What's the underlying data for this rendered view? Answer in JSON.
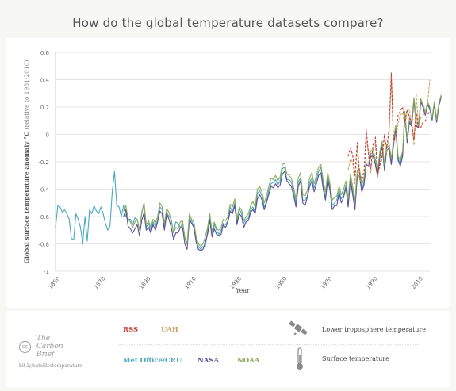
{
  "title": "How do the global temperature datasets compare?",
  "brand": {
    "cc": "cc",
    "line1": "The",
    "line2": "Carbon",
    "line3": "Brief",
    "url": "bit.ly/satellitetemperature"
  },
  "legend": {
    "rss": "RSS",
    "uah": "UAH",
    "met": "Met Office/CRU",
    "nasa": "NASA",
    "noaa": "NOAA",
    "lower_troposphere": "Lower troposphere temperature",
    "surface": "Surface temperature",
    "satellite_icon": "satellite-icon",
    "thermometer_icon": "thermometer-icon"
  },
  "colors": {
    "rss": "#c0392b",
    "uah": "#c9a46a",
    "met": "#4aa8c0",
    "nasa": "#5b4f9a",
    "noaa": "#8aab5a",
    "grid": "#e4e4e4"
  },
  "chart_data": {
    "type": "line",
    "title": "How do the global temperature datasets compare?",
    "xlabel": "Year",
    "ylabel": "Global surface temperature anomaly °C",
    "ylabel_note": "(relative to 1981-2010)",
    "xlim": [
      1850,
      2015
    ],
    "ylim": [
      -1,
      0.6
    ],
    "xticks": [
      1850,
      1870,
      1890,
      1910,
      1930,
      1950,
      1970,
      1990,
      2010
    ],
    "yticks": [
      0.6,
      0.4,
      0.2,
      0,
      -0.2,
      -0.4,
      -0.6,
      -0.8,
      -1
    ],
    "ytick_labels": [
      "0.6",
      "0.4",
      "0.2",
      "0",
      "-0.2",
      "-0.4",
      "-0.6",
      "-0.8",
      "-1"
    ],
    "grid": true,
    "series": [
      {
        "name": "Met Office/CRU",
        "style": "solid",
        "x_start": 1850,
        "values": [
          -0.68,
          -0.52,
          -0.53,
          -0.57,
          -0.55,
          -0.58,
          -0.62,
          -0.76,
          -0.77,
          -0.58,
          -0.62,
          -0.68,
          -0.8,
          -0.6,
          -0.78,
          -0.55,
          -0.58,
          -0.52,
          -0.56,
          -0.58,
          -0.53,
          -0.58,
          -0.65,
          -0.7,
          -0.67,
          -0.42,
          -0.27,
          -0.52,
          -0.53,
          -0.6,
          -0.52,
          -0.6,
          -0.62,
          -0.62,
          -0.66,
          -0.61,
          -0.62,
          -0.7,
          -0.57,
          -0.5,
          -0.68,
          -0.65,
          -0.71,
          -0.64,
          -0.67,
          -0.63,
          -0.53,
          -0.55,
          -0.68,
          -0.57,
          -0.6,
          -0.62,
          -0.72,
          -0.64,
          -0.65,
          -0.68,
          -0.65,
          -0.75,
          -0.8,
          -0.61,
          -0.63,
          -0.68,
          -0.78,
          -0.82,
          -0.84,
          -0.82,
          -0.82,
          -0.71,
          -0.6,
          -0.74,
          -0.66,
          -0.7,
          -0.73,
          -0.7,
          -0.65,
          -0.66,
          -0.63,
          -0.53,
          -0.57,
          -0.5,
          -0.64,
          -0.54,
          -0.58,
          -0.65,
          -0.62,
          -0.61,
          -0.55,
          -0.53,
          -0.57,
          -0.43,
          -0.41,
          -0.45,
          -0.53,
          -0.49,
          -0.41,
          -0.36,
          -0.35,
          -0.33,
          -0.37,
          -0.34,
          -0.25,
          -0.24,
          -0.33,
          -0.33,
          -0.35,
          -0.42,
          -0.5,
          -0.35,
          -0.32,
          -0.48,
          -0.48,
          -0.45,
          -0.35,
          -0.32,
          -0.39,
          -0.33,
          -0.27,
          -0.24,
          -0.37,
          -0.46,
          -0.31,
          -0.39,
          -0.52,
          -0.5,
          -0.48,
          -0.41,
          -0.47,
          -0.44,
          -0.37,
          -0.51,
          -0.32,
          -0.42,
          -0.53,
          -0.29,
          -0.29,
          -0.4,
          -0.35,
          -0.21,
          -0.21,
          -0.14,
          -0.14,
          -0.21,
          -0.29,
          -0.14,
          -0.07,
          -0.25,
          -0.1,
          -0.08,
          -0.2,
          -0.06,
          0.05,
          -0.18,
          -0.21,
          -0.14,
          0.15,
          -0.05,
          0.1,
          0.07,
          0.26,
          0.07,
          0.05,
          0.24,
          0.2,
          0.14,
          0.22,
          0.18,
          0.1,
          0.22,
          0.09,
          0.21,
          0.27
        ],
        "color_key": "met"
      },
      {
        "name": "NASA",
        "style": "solid",
        "x_start": 1880,
        "values": [
          -0.6,
          -0.55,
          -0.67,
          -0.69,
          -0.72,
          -0.69,
          -0.66,
          -0.74,
          -0.63,
          -0.57,
          -0.7,
          -0.68,
          -0.72,
          -0.66,
          -0.7,
          -0.64,
          -0.56,
          -0.58,
          -0.7,
          -0.58,
          -0.62,
          -0.68,
          -0.77,
          -0.72,
          -0.72,
          -0.68,
          -0.68,
          -0.8,
          -0.84,
          -0.62,
          -0.65,
          -0.68,
          -0.79,
          -0.84,
          -0.85,
          -0.84,
          -0.79,
          -0.73,
          -0.63,
          -0.75,
          -0.69,
          -0.73,
          -0.74,
          -0.73,
          -0.66,
          -0.68,
          -0.64,
          -0.56,
          -0.58,
          -0.52,
          -0.66,
          -0.58,
          -0.6,
          -0.68,
          -0.64,
          -0.63,
          -0.57,
          -0.55,
          -0.58,
          -0.47,
          -0.44,
          -0.48,
          -0.55,
          -0.5,
          -0.44,
          -0.38,
          -0.39,
          -0.36,
          -0.39,
          -0.37,
          -0.29,
          -0.27,
          -0.34,
          -0.36,
          -0.38,
          -0.45,
          -0.53,
          -0.38,
          -0.34,
          -0.5,
          -0.52,
          -0.46,
          -0.38,
          -0.34,
          -0.42,
          -0.36,
          -0.3,
          -0.28,
          -0.4,
          -0.48,
          -0.33,
          -0.41,
          -0.55,
          -0.52,
          -0.52,
          -0.43,
          -0.5,
          -0.46,
          -0.39,
          -0.53,
          -0.34,
          -0.44,
          -0.55,
          -0.31,
          -0.3,
          -0.42,
          -0.37,
          -0.22,
          -0.23,
          -0.16,
          -0.16,
          -0.22,
          -0.31,
          -0.16,
          -0.09,
          -0.26,
          -0.12,
          -0.1,
          -0.22,
          -0.08,
          0.04,
          -0.19,
          -0.23,
          -0.16,
          0.14,
          -0.06,
          0.09,
          0.06,
          0.25,
          0.06,
          0.05,
          0.24,
          0.2,
          0.14,
          0.22,
          0.19,
          0.11,
          0.23,
          0.09,
          0.21,
          0.28
        ],
        "color_key": "nasa"
      },
      {
        "name": "NOAA",
        "style": "solid",
        "x_start": 1880,
        "values": [
          -0.56,
          -0.52,
          -0.62,
          -0.64,
          -0.68,
          -0.64,
          -0.62,
          -0.7,
          -0.58,
          -0.5,
          -0.66,
          -0.63,
          -0.68,
          -0.62,
          -0.65,
          -0.6,
          -0.5,
          -0.53,
          -0.65,
          -0.54,
          -0.57,
          -0.63,
          -0.72,
          -0.68,
          -0.69,
          -0.64,
          -0.63,
          -0.76,
          -0.8,
          -0.58,
          -0.62,
          -0.64,
          -0.75,
          -0.8,
          -0.82,
          -0.8,
          -0.75,
          -0.68,
          -0.58,
          -0.71,
          -0.64,
          -0.69,
          -0.7,
          -0.68,
          -0.62,
          -0.63,
          -0.6,
          -0.51,
          -0.53,
          -0.47,
          -0.62,
          -0.53,
          -0.55,
          -0.63,
          -0.6,
          -0.58,
          -0.52,
          -0.49,
          -0.53,
          -0.4,
          -0.38,
          -0.42,
          -0.5,
          -0.45,
          -0.38,
          -0.32,
          -0.33,
          -0.3,
          -0.34,
          -0.31,
          -0.22,
          -0.21,
          -0.29,
          -0.3,
          -0.32,
          -0.39,
          -0.47,
          -0.32,
          -0.28,
          -0.44,
          -0.45,
          -0.41,
          -0.32,
          -0.28,
          -0.36,
          -0.3,
          -0.24,
          -0.22,
          -0.34,
          -0.42,
          -0.28,
          -0.36,
          -0.48,
          -0.46,
          -0.45,
          -0.38,
          -0.44,
          -0.4,
          -0.34,
          -0.47,
          -0.29,
          -0.38,
          -0.49,
          -0.26,
          -0.25,
          -0.37,
          -0.32,
          -0.18,
          -0.18,
          -0.12,
          -0.11,
          -0.18,
          -0.26,
          -0.12,
          -0.05,
          -0.22,
          -0.08,
          -0.06,
          -0.18,
          -0.04,
          0.07,
          -0.16,
          -0.19,
          -0.12,
          0.17,
          -0.03,
          0.12,
          0.09,
          0.27,
          0.09,
          0.07,
          0.26,
          0.22,
          0.16,
          0.24,
          0.2,
          0.12,
          0.24,
          0.11,
          0.23,
          0.29
        ],
        "color_key": "noaa"
      },
      {
        "name": "RSS",
        "style": "dashed",
        "x_start": 1979,
        "values": [
          -0.16,
          -0.1,
          -0.15,
          -0.3,
          -0.06,
          -0.28,
          -0.33,
          -0.27,
          0.03,
          -0.15,
          -0.25,
          -0.07,
          -0.02,
          -0.28,
          -0.22,
          -0.15,
          0.0,
          -0.1,
          0.03,
          0.45,
          -0.05,
          -0.02,
          0.14,
          0.17,
          0.2,
          0.09,
          0.18,
          0.13,
          0.08,
          -0.04,
          0.16,
          0.05,
          0.05,
          0.09,
          0.1,
          0.14,
          0.17
        ],
        "color_key": "rss"
      },
      {
        "name": "UAH",
        "style": "dashed",
        "x_start": 1979,
        "values": [
          -0.26,
          -0.18,
          -0.2,
          -0.36,
          -0.1,
          -0.33,
          -0.35,
          -0.3,
          -0.05,
          -0.12,
          -0.28,
          -0.1,
          -0.06,
          -0.31,
          -0.24,
          -0.18,
          -0.03,
          -0.14,
          -0.02,
          0.41,
          -0.06,
          -0.03,
          0.08,
          0.14,
          0.16,
          0.05,
          0.17,
          0.18,
          0.1,
          -0.08,
          0.3,
          0.06,
          0.12,
          0.14,
          0.16,
          0.22,
          0.4
        ],
        "color_key": "uah"
      }
    ]
  }
}
